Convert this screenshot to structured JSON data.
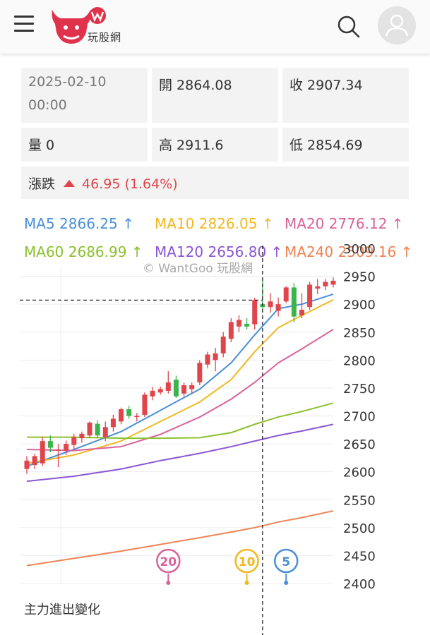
{
  "header": {
    "logo_text": "玩股網",
    "colors": {
      "brand": "#e0334b"
    }
  },
  "info": {
    "date": "2025-02-10",
    "time": "00:00",
    "open_label": "開",
    "open": "2864.08",
    "close_label": "收",
    "close": "2907.34",
    "volume_label": "量",
    "volume": "0",
    "high_label": "高",
    "high": "2911.6",
    "low_label": "低",
    "low": "2854.69",
    "change_label": "漲跌",
    "change": "46.95 (1.64%)"
  },
  "ma_legend": [
    {
      "text": "MA5 2866.25 ↑",
      "color": "#4a8fd6"
    },
    {
      "text": "MA10 2826.05 ↑",
      "color": "#f2b81f"
    },
    {
      "text": "MA20 2776.12 ↑",
      "color": "#d9639a"
    },
    {
      "text": "MA60 2686.99 ↑",
      "color": "#8cc02d"
    },
    {
      "text": "MA120 2656.80 ↑",
      "color": "#8a57d6"
    },
    {
      "text": "MA240 2509.16 ↑",
      "color": "#ee8455"
    }
  ],
  "watermark": "© WantGoo 玩股網",
  "section_title": "主力進出變化",
  "chart_data": {
    "type": "candlestick",
    "ylim": [
      2400,
      3000
    ],
    "yticks": [
      2400,
      2450,
      2500,
      2550,
      2600,
      2650,
      2700,
      2750,
      2800,
      2850,
      2900,
      2950,
      3000
    ],
    "up_color": "#e0454b",
    "down_color": "#3cb44b",
    "crosshair": {
      "index": 30,
      "price": 2907.34
    },
    "candles": [
      {
        "o": 2605,
        "h": 2628,
        "l": 2596,
        "c": 2620
      },
      {
        "o": 2612,
        "h": 2632,
        "l": 2605,
        "c": 2628
      },
      {
        "o": 2615,
        "h": 2662,
        "l": 2610,
        "c": 2655
      },
      {
        "o": 2655,
        "h": 2665,
        "l": 2635,
        "c": 2643
      },
      {
        "o": 2638,
        "h": 2650,
        "l": 2608,
        "c": 2640
      },
      {
        "o": 2638,
        "h": 2656,
        "l": 2630,
        "c": 2650
      },
      {
        "o": 2648,
        "h": 2668,
        "l": 2640,
        "c": 2662
      },
      {
        "o": 2660,
        "h": 2672,
        "l": 2652,
        "c": 2668
      },
      {
        "o": 2665,
        "h": 2690,
        "l": 2660,
        "c": 2688
      },
      {
        "o": 2686,
        "h": 2692,
        "l": 2660,
        "c": 2665
      },
      {
        "o": 2662,
        "h": 2690,
        "l": 2655,
        "c": 2680
      },
      {
        "o": 2680,
        "h": 2702,
        "l": 2672,
        "c": 2695
      },
      {
        "o": 2690,
        "h": 2715,
        "l": 2685,
        "c": 2712
      },
      {
        "o": 2712,
        "h": 2718,
        "l": 2695,
        "c": 2700
      },
      {
        "o": 2698,
        "h": 2705,
        "l": 2690,
        "c": 2700
      },
      {
        "o": 2702,
        "h": 2742,
        "l": 2698,
        "c": 2738
      },
      {
        "o": 2735,
        "h": 2752,
        "l": 2728,
        "c": 2745
      },
      {
        "o": 2742,
        "h": 2752,
        "l": 2738,
        "c": 2748
      },
      {
        "o": 2745,
        "h": 2780,
        "l": 2740,
        "c": 2760
      },
      {
        "o": 2765,
        "h": 2772,
        "l": 2732,
        "c": 2735
      },
      {
        "o": 2740,
        "h": 2760,
        "l": 2735,
        "c": 2755
      },
      {
        "o": 2748,
        "h": 2760,
        "l": 2740,
        "c": 2755
      },
      {
        "o": 2760,
        "h": 2800,
        "l": 2755,
        "c": 2795
      },
      {
        "o": 2792,
        "h": 2815,
        "l": 2785,
        "c": 2810
      },
      {
        "o": 2800,
        "h": 2822,
        "l": 2780,
        "c": 2812
      },
      {
        "o": 2812,
        "h": 2850,
        "l": 2805,
        "c": 2842
      },
      {
        "o": 2838,
        "h": 2875,
        "l": 2832,
        "c": 2868
      },
      {
        "o": 2860,
        "h": 2880,
        "l": 2850,
        "c": 2872
      },
      {
        "o": 2865,
        "h": 2875,
        "l": 2855,
        "c": 2860
      },
      {
        "o": 2864.08,
        "h": 2911.6,
        "l": 2854.69,
        "c": 2907.34
      },
      {
        "o": 2900,
        "h": 2945,
        "l": 2885,
        "c": 2895
      },
      {
        "o": 2895,
        "h": 2920,
        "l": 2885,
        "c": 2905
      },
      {
        "o": 2888,
        "h": 2912,
        "l": 2878,
        "c": 2900
      },
      {
        "o": 2905,
        "h": 2932,
        "l": 2902,
        "c": 2930
      },
      {
        "o": 2930,
        "h": 2938,
        "l": 2868,
        "c": 2878
      },
      {
        "o": 2880,
        "h": 2920,
        "l": 2875,
        "c": 2890
      },
      {
        "o": 2895,
        "h": 2940,
        "l": 2890,
        "c": 2935
      },
      {
        "o": 2928,
        "h": 2945,
        "l": 2918,
        "c": 2932
      },
      {
        "o": 2932,
        "h": 2945,
        "l": 2925,
        "c": 2940
      },
      {
        "o": 2935,
        "h": 2948,
        "l": 2930,
        "c": 2942
      }
    ],
    "ma_lines": [
      {
        "name": "MA5",
        "color": "#4a8fd6",
        "points": [
          [
            0,
            2610
          ],
          [
            6,
            2640
          ],
          [
            12,
            2672
          ],
          [
            17,
            2710
          ],
          [
            22,
            2748
          ],
          [
            26,
            2795
          ],
          [
            29,
            2845
          ],
          [
            32,
            2892
          ],
          [
            35,
            2900
          ],
          [
            39,
            2918
          ]
        ]
      },
      {
        "name": "MA10",
        "color": "#f2b81f",
        "points": [
          [
            0,
            2615
          ],
          [
            6,
            2630
          ],
          [
            12,
            2655
          ],
          [
            17,
            2690
          ],
          [
            22,
            2725
          ],
          [
            26,
            2765
          ],
          [
            29,
            2815
          ],
          [
            32,
            2858
          ],
          [
            35,
            2880
          ],
          [
            39,
            2908
          ]
        ]
      },
      {
        "name": "MA20",
        "color": "#d9639a",
        "points": [
          [
            0,
            2640
          ],
          [
            6,
            2638
          ],
          [
            12,
            2645
          ],
          [
            17,
            2667
          ],
          [
            22,
            2698
          ],
          [
            26,
            2730
          ],
          [
            29,
            2760
          ],
          [
            32,
            2795
          ],
          [
            35,
            2820
          ],
          [
            39,
            2855
          ]
        ]
      },
      {
        "name": "MA60",
        "color": "#8cc02d",
        "points": [
          [
            0,
            2662
          ],
          [
            6,
            2662
          ],
          [
            12,
            2660
          ],
          [
            17,
            2660
          ],
          [
            22,
            2661
          ],
          [
            26,
            2670
          ],
          [
            29,
            2685
          ],
          [
            32,
            2698
          ],
          [
            35,
            2708
          ],
          [
            39,
            2723
          ]
        ]
      },
      {
        "name": "MA120",
        "color": "#8a57d6",
        "points": [
          [
            0,
            2583
          ],
          [
            6,
            2592
          ],
          [
            12,
            2605
          ],
          [
            17,
            2620
          ],
          [
            22,
            2633
          ],
          [
            26,
            2645
          ],
          [
            29,
            2655
          ],
          [
            32,
            2665
          ],
          [
            35,
            2673
          ],
          [
            39,
            2685
          ]
        ]
      },
      {
        "name": "MA240",
        "color": "#ee8455",
        "points": [
          [
            0,
            2432
          ],
          [
            6,
            2445
          ],
          [
            12,
            2458
          ],
          [
            17,
            2470
          ],
          [
            22,
            2482
          ],
          [
            26,
            2492
          ],
          [
            29,
            2500
          ],
          [
            32,
            2510
          ],
          [
            35,
            2518
          ],
          [
            39,
            2530
          ]
        ]
      }
    ],
    "markers": [
      {
        "label": "20",
        "index": 18,
        "color": "#d9639a"
      },
      {
        "label": "10",
        "index": 28,
        "color": "#f2b81f"
      },
      {
        "label": "5",
        "index": 33,
        "color": "#4a8fd6"
      }
    ]
  }
}
